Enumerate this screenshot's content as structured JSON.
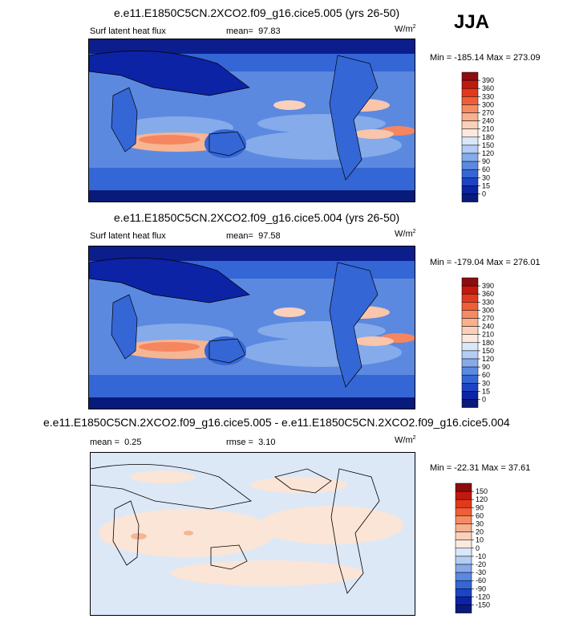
{
  "season": "JJA",
  "units_base": "W/m",
  "units_exp": "2",
  "panels": [
    {
      "title": "e.e11.E1850C5CN.2XCO2.f09_g16.cice5.005 (yrs 26-50)",
      "variable": "Surf latent heat flux",
      "stat_label": "mean=",
      "stat_value": "97.83",
      "minmax": "Min = -185.14 Max = 273.09",
      "colorbar_ticks": [
        "390",
        "360",
        "330",
        "300",
        "270",
        "240",
        "210",
        "180",
        "150",
        "120",
        "90",
        "60",
        "30",
        "15",
        "0"
      ],
      "colors": [
        "#8c0d0d",
        "#c2190f",
        "#e2391c",
        "#f05e37",
        "#f68b63",
        "#f9b08f",
        "#fbd0bb",
        "#fbe9df",
        "#d9e7fa",
        "#b3cdf5",
        "#85abeb",
        "#5c89e0",
        "#3466d6",
        "#1c44c4",
        "#0c23a6",
        "#081b7a"
      ]
    },
    {
      "title": "e.e11.E1850C5CN.2XCO2.f09_g16.cice5.004 (yrs 26-50)",
      "variable": "Surf latent heat flux",
      "stat_label": "mean=",
      "stat_value": "97.58",
      "minmax": "Min = -179.04 Max = 276.01",
      "colorbar_ticks": [
        "390",
        "360",
        "330",
        "300",
        "270",
        "240",
        "210",
        "180",
        "150",
        "120",
        "90",
        "60",
        "30",
        "15",
        "0"
      ],
      "colors": [
        "#8c0d0d",
        "#c2190f",
        "#e2391c",
        "#f05e37",
        "#f68b63",
        "#f9b08f",
        "#fbd0bb",
        "#fbe9df",
        "#d9e7fa",
        "#b3cdf5",
        "#85abeb",
        "#5c89e0",
        "#3466d6",
        "#1c44c4",
        "#0c23a6",
        "#081b7a"
      ]
    },
    {
      "title": "e.e11.E1850C5CN.2XCO2.f09_g16.cice5.005 - e.e11.E1850C5CN.2XCO2.f09_g16.cice5.004",
      "mean_label": "mean =",
      "mean_value": "0.25",
      "stat_label": "rmse =",
      "stat_value": "3.10",
      "minmax": "Min = -22.31 Max = 37.61",
      "colorbar_ticks": [
        "150",
        "120",
        "90",
        "60",
        "30",
        "20",
        "10",
        "0",
        "-10",
        "-20",
        "-30",
        "-60",
        "-90",
        "-120",
        "-150"
      ],
      "colors": [
        "#8c0d0d",
        "#c2190f",
        "#e2391c",
        "#f05e37",
        "#f68b63",
        "#f9b08f",
        "#fbd0bb",
        "#fbe9df",
        "#d9e7fa",
        "#b3cdf5",
        "#85abeb",
        "#5c89e0",
        "#3466d6",
        "#1c44c4",
        "#0c23a6",
        "#081b7a"
      ]
    }
  ]
}
